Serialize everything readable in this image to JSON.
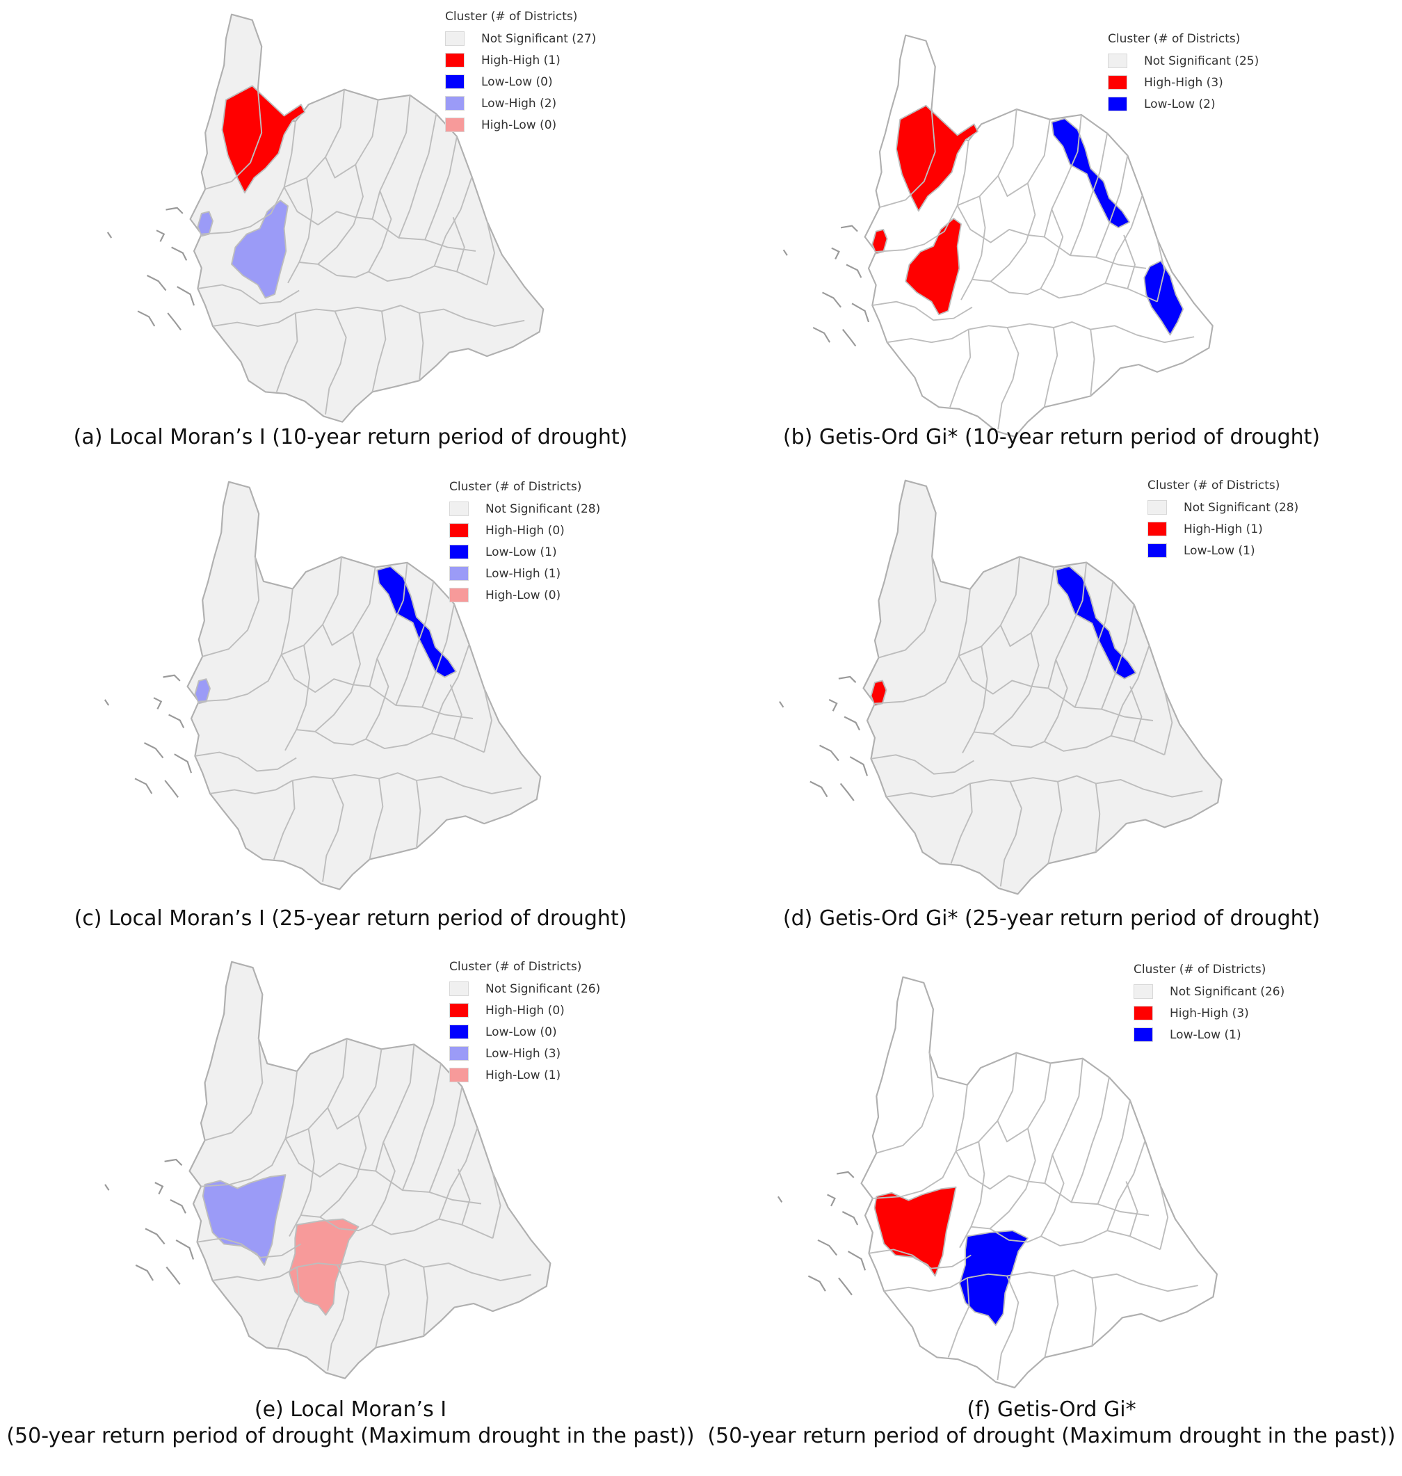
{
  "legend_title": "Cluster (# of Districts)",
  "colors": {
    "not_significant": "#f0f0f0",
    "high_high": "#ff0000",
    "low_low": "#0000ff",
    "low_high": "#9b9bf7",
    "high_low": "#f79a9a",
    "blank": "#ffffff",
    "border": "#bdbdbd"
  },
  "panels": [
    {
      "id": "a",
      "caption": [
        "(a) Local Moran’s I (10-year return period of drought)"
      ],
      "fill_mode": "gray",
      "highlights": [
        {
          "region": "northwest-upper",
          "category": "high_high"
        },
        {
          "region": "west-islet",
          "category": "low_high"
        },
        {
          "region": "west-central",
          "category": "low_high"
        }
      ],
      "legend": [
        {
          "label": "Not Significant (27)",
          "category": "not_significant"
        },
        {
          "label": "High-High (1)",
          "category": "high_high"
        },
        {
          "label": "Low-Low (0)",
          "category": "low_low"
        },
        {
          "label": "Low-High (2)",
          "category": "low_high"
        },
        {
          "label": "High-Low (0)",
          "category": "high_low"
        }
      ]
    },
    {
      "id": "b",
      "caption": [
        "(b) Getis-Ord Gi* (10-year return period of drought)"
      ],
      "fill_mode": "white",
      "highlights": [
        {
          "region": "northwest-upper",
          "category": "high_high"
        },
        {
          "region": "west-islet",
          "category": "high_high"
        },
        {
          "region": "west-central",
          "category": "high_high"
        },
        {
          "region": "east-coast-north",
          "category": "low_low"
        },
        {
          "region": "east-coast-south",
          "category": "low_low"
        }
      ],
      "legend": [
        {
          "label": "Not Significant (25)",
          "category": "not_significant"
        },
        {
          "label": "High-High (3)",
          "category": "high_high"
        },
        {
          "label": "Low-Low (2)",
          "category": "low_low"
        }
      ]
    },
    {
      "id": "c",
      "caption": [
        "(c) Local Moran’s I (25-year return period of drought)"
      ],
      "fill_mode": "gray",
      "highlights": [
        {
          "region": "east-coast-north",
          "category": "low_low"
        },
        {
          "region": "west-islet",
          "category": "low_high"
        }
      ],
      "legend": [
        {
          "label": "Not Significant (28)",
          "category": "not_significant"
        },
        {
          "label": "High-High (0)",
          "category": "high_high"
        },
        {
          "label": "Low-Low (1)",
          "category": "low_low"
        },
        {
          "label": "Low-High (1)",
          "category": "low_high"
        },
        {
          "label": "High-Low (0)",
          "category": "high_low"
        }
      ]
    },
    {
      "id": "d",
      "caption": [
        "(d) Getis-Ord Gi* (25-year return period of drought)"
      ],
      "fill_mode": "gray",
      "highlights": [
        {
          "region": "east-coast-north",
          "category": "low_low"
        },
        {
          "region": "west-islet",
          "category": "high_high"
        }
      ],
      "legend": [
        {
          "label": "Not Significant (28)",
          "category": "not_significant"
        },
        {
          "label": "High-High (1)",
          "category": "high_high"
        },
        {
          "label": "Low-Low (1)",
          "category": "low_low"
        }
      ]
    },
    {
      "id": "e",
      "caption": [
        "(e) Local Moran’s I",
        "(50-year return period of drought (Maximum drought in the past))"
      ],
      "fill_mode": "gray",
      "highlights": [
        {
          "region": "west-lower",
          "category": "low_high"
        },
        {
          "region": "south-central",
          "category": "high_low"
        }
      ],
      "legend": [
        {
          "label": "Not Significant (26)",
          "category": "not_significant"
        },
        {
          "label": "High-High (0)",
          "category": "high_high"
        },
        {
          "label": "Low-Low (0)",
          "category": "low_low"
        },
        {
          "label": "Low-High (3)",
          "category": "low_high"
        },
        {
          "label": "High-Low (1)",
          "category": "high_low"
        }
      ]
    },
    {
      "id": "f",
      "caption": [
        "(f) Getis-Ord Gi*",
        "(50-year return period of drought (Maximum drought in the past))"
      ],
      "fill_mode": "white",
      "highlights": [
        {
          "region": "west-lower",
          "category": "high_high"
        },
        {
          "region": "south-central",
          "category": "low_low"
        }
      ],
      "legend": [
        {
          "label": "Not Significant (26)",
          "category": "not_significant"
        },
        {
          "label": "High-High (3)",
          "category": "high_high"
        },
        {
          "label": "Low-Low (1)",
          "category": "low_low"
        }
      ]
    }
  ]
}
